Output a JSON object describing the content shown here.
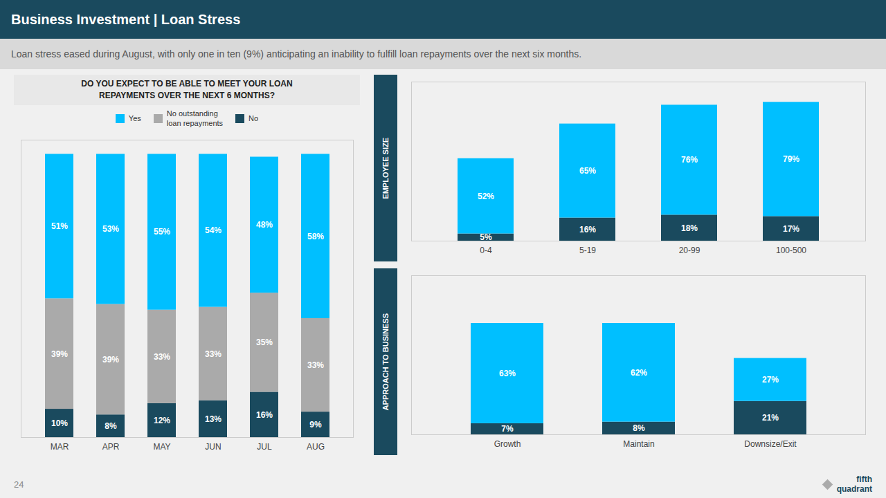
{
  "title": "Business Investment | Loan Stress",
  "subtitle": "Loan stress eased during August, with only one in ten (9%) anticipating an inability to fulfill loan repayments over the next six months.",
  "annotations": [
    "24",
    "fifth\nquadrant"
  ],
  "chart_data": [
    {
      "type": "bar",
      "stacked": true,
      "title": "DO YOU EXPECT TO BE ABLE TO MEET YOUR LOAN\nREPAYMENTS OVER THE NEXT 6 MONTHS?",
      "categories": [
        "MAR",
        "APR",
        "MAY",
        "JUN",
        "JUL",
        "AUG"
      ],
      "series": [
        {
          "name": "Yes",
          "color": "#00bfff",
          "values": [
            51,
            53,
            55,
            54,
            48,
            58
          ],
          "value_labels": [
            "51%",
            "53%",
            "55%",
            "54%",
            "48%",
            "58%"
          ]
        },
        {
          "name": "No outstanding\nloan repayments",
          "color": "#aaaaaa",
          "values": [
            39,
            39,
            33,
            33,
            35,
            33
          ],
          "value_labels": [
            "39%",
            "39%",
            "33%",
            "33%",
            "35%",
            "33%"
          ]
        },
        {
          "name": "No",
          "color": "#1a4a5e",
          "values": [
            10,
            8,
            12,
            13,
            16,
            9
          ],
          "value_labels": [
            "10%",
            "8%",
            "12%",
            "13%",
            "16%",
            "9%"
          ]
        }
      ],
      "ylim": [
        0,
        105
      ],
      "tick_labels": "x",
      "data_labels": true,
      "legend": "top"
    },
    {
      "type": "bar",
      "stacked": true,
      "title": "EMPLOYEE SIZE",
      "categories": [
        "0-4",
        "5-19",
        "20-99",
        "100-500"
      ],
      "series": [
        {
          "color": "#00bfff",
          "values": [
            52,
            65,
            76,
            79
          ],
          "value_labels": [
            "52%",
            "65%",
            "76%",
            "79%"
          ]
        },
        {
          "color": "#1a4a5e",
          "values": [
            5,
            16,
            18,
            17
          ],
          "value_labels": [
            "5%",
            "16%",
            "18%",
            "17%"
          ]
        }
      ],
      "ylim": [
        0,
        110
      ],
      "tick_labels": "x",
      "data_labels": true
    },
    {
      "type": "bar",
      "stacked": true,
      "title": "APPROACH TO BUSINESS",
      "categories": [
        "Growth",
        "Maintain",
        "Downsize/Exit"
      ],
      "series": [
        {
          "color": "#00bfff",
          "values": [
            63,
            62,
            27
          ],
          "value_labels": [
            "63%",
            "62%",
            "27%"
          ]
        },
        {
          "color": "#1a4a5e",
          "values": [
            7,
            8,
            21
          ],
          "value_labels": [
            "7%",
            "8%",
            "21%"
          ]
        }
      ],
      "ylim": [
        0,
        100
      ],
      "tick_labels": "x",
      "data_labels": true
    }
  ]
}
